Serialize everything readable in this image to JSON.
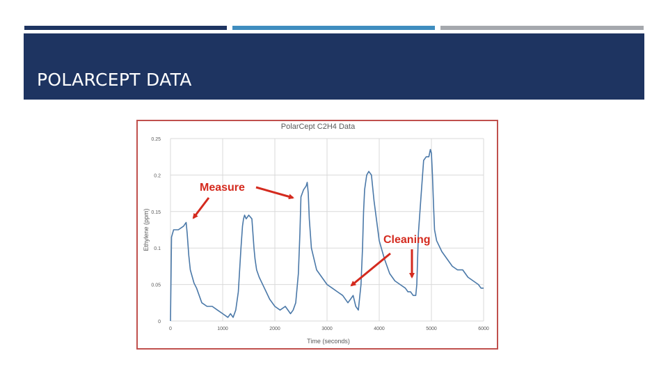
{
  "slide": {
    "title": "POLARCEPT DATA",
    "banner_color": "#1e3461",
    "top_bars": [
      "#1e3461",
      "#3f8dbf",
      "#a5a8ad"
    ]
  },
  "annotations": {
    "measure": "Measure",
    "cleaning": "Cleaning",
    "color": "#d42a1e"
  },
  "chart_data": {
    "type": "line",
    "title": "PolarCept C2H4 Data",
    "xlabel": "Time (seconds)",
    "ylabel": "Ethylene (ppm)",
    "xlim": [
      0,
      6000
    ],
    "ylim": [
      0,
      0.25
    ],
    "xticks": [
      0,
      1000,
      2000,
      3000,
      4000,
      5000,
      6000
    ],
    "yticks": [
      0,
      0.05,
      0.1,
      0.15,
      0.2,
      0.25
    ],
    "xtick_labels": [
      "0",
      "1000",
      "2000",
      "3000",
      "4000",
      "5000",
      "6000"
    ],
    "ytick_labels": [
      "0",
      "0.05",
      "0.1",
      "0.15",
      "0.2",
      "0.25"
    ],
    "grid": true,
    "line_color": "#4a78a8",
    "series": [
      {
        "x": [
          0,
          20,
          60,
          150,
          250,
          300,
          320,
          350,
          380,
          450,
          500,
          600,
          700,
          800,
          900,
          1000,
          1100,
          1150,
          1200,
          1250,
          1300,
          1350,
          1380,
          1400,
          1420,
          1450,
          1500,
          1560,
          1600,
          1620,
          1650,
          1700,
          1800,
          1900,
          2000,
          2100,
          2200,
          2300,
          2350,
          2400,
          2450,
          2480,
          2500,
          2550,
          2600,
          2620,
          2640,
          2660,
          2700,
          2800,
          2900,
          3000,
          3100,
          3200,
          3300,
          3400,
          3450,
          3500,
          3550,
          3600,
          3650,
          3680,
          3700,
          3720,
          3760,
          3800,
          3850,
          3900,
          4000,
          4100,
          4200,
          4300,
          4400,
          4500,
          4550,
          4600,
          4650,
          4700,
          4720,
          4750,
          4800,
          4850,
          4900,
          4950,
          4980,
          5000,
          5020,
          5040,
          5060,
          5100,
          5200,
          5300,
          5400,
          5500,
          5600,
          5700,
          5800,
          5900,
          5950,
          6000
        ],
        "y": [
          0.0,
          0.115,
          0.125,
          0.125,
          0.13,
          0.135,
          0.12,
          0.09,
          0.07,
          0.052,
          0.045,
          0.025,
          0.02,
          0.02,
          0.015,
          0.01,
          0.005,
          0.01,
          0.005,
          0.015,
          0.04,
          0.1,
          0.13,
          0.14,
          0.145,
          0.14,
          0.145,
          0.14,
          0.1,
          0.085,
          0.07,
          0.06,
          0.045,
          0.03,
          0.02,
          0.015,
          0.02,
          0.01,
          0.015,
          0.025,
          0.065,
          0.12,
          0.17,
          0.18,
          0.185,
          0.19,
          0.175,
          0.14,
          0.1,
          0.07,
          0.06,
          0.05,
          0.045,
          0.04,
          0.035,
          0.025,
          0.03,
          0.035,
          0.02,
          0.015,
          0.05,
          0.1,
          0.15,
          0.18,
          0.2,
          0.205,
          0.2,
          0.165,
          0.11,
          0.085,
          0.065,
          0.055,
          0.05,
          0.045,
          0.04,
          0.04,
          0.035,
          0.035,
          0.05,
          0.12,
          0.17,
          0.22,
          0.225,
          0.225,
          0.235,
          0.23,
          0.2,
          0.16,
          0.125,
          0.11,
          0.095,
          0.085,
          0.075,
          0.07,
          0.07,
          0.06,
          0.055,
          0.05,
          0.045,
          0.045
        ]
      }
    ]
  }
}
